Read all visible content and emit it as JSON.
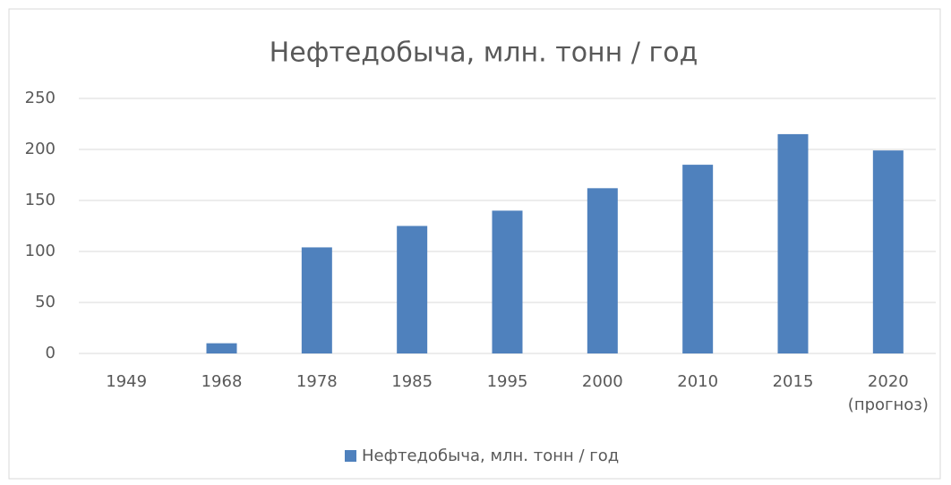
{
  "chart_data": {
    "type": "bar",
    "title": "Нефтедобыча, млн. тонн / год",
    "categories": [
      "1949",
      "1968",
      "1978",
      "1985",
      "1995",
      "2000",
      "2010",
      "2015",
      "2020\n(прогноз)"
    ],
    "series": [
      {
        "name": "Нефтедобыча, млн. тонн / год",
        "color": "#4f81bd",
        "values": [
          0,
          10,
          104,
          125,
          140,
          162,
          185,
          215,
          199
        ]
      }
    ],
    "ylim": [
      0,
      250
    ],
    "yticks": [
      0,
      50,
      100,
      150,
      200,
      250
    ],
    "grid": true,
    "legend": "bottom"
  }
}
